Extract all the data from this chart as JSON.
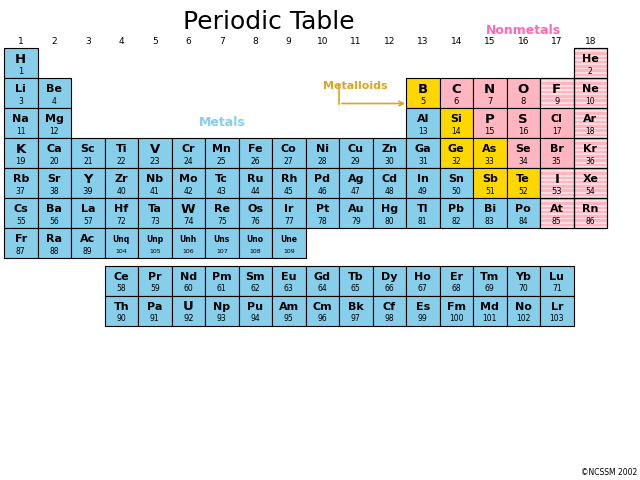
{
  "title": "Periodic Table",
  "title_fontsize": 18,
  "bg_color": "#ffffff",
  "color_map": {
    "metal": "#87CEEB",
    "nonmetal": "#FFB6C1",
    "metalloid": "#FFD700",
    "noble_striped": "#FFB6C1",
    "nonmetal_stripe": "#FFB6C1"
  },
  "elements": [
    {
      "symbol": "H",
      "number": 1,
      "group": 1,
      "period": 1,
      "type": "metal"
    },
    {
      "symbol": "He",
      "number": 2,
      "group": 18,
      "period": 1,
      "type": "noble_striped"
    },
    {
      "symbol": "Li",
      "number": 3,
      "group": 1,
      "period": 2,
      "type": "metal"
    },
    {
      "symbol": "Be",
      "number": 4,
      "group": 2,
      "period": 2,
      "type": "metal"
    },
    {
      "symbol": "B",
      "number": 5,
      "group": 13,
      "period": 2,
      "type": "metalloid"
    },
    {
      "symbol": "C",
      "number": 6,
      "group": 14,
      "period": 2,
      "type": "nonmetal"
    },
    {
      "symbol": "N",
      "number": 7,
      "group": 15,
      "period": 2,
      "type": "nonmetal"
    },
    {
      "symbol": "O",
      "number": 8,
      "group": 16,
      "period": 2,
      "type": "nonmetal"
    },
    {
      "symbol": "F",
      "number": 9,
      "group": 17,
      "period": 2,
      "type": "nonmetal_stripe"
    },
    {
      "symbol": "Ne",
      "number": 10,
      "group": 18,
      "period": 2,
      "type": "noble_striped"
    },
    {
      "symbol": "Na",
      "number": 11,
      "group": 1,
      "period": 3,
      "type": "metal"
    },
    {
      "symbol": "Mg",
      "number": 12,
      "group": 2,
      "period": 3,
      "type": "metal"
    },
    {
      "symbol": "Al",
      "number": 13,
      "group": 13,
      "period": 3,
      "type": "metal"
    },
    {
      "symbol": "Si",
      "number": 14,
      "group": 14,
      "period": 3,
      "type": "metalloid"
    },
    {
      "symbol": "P",
      "number": 15,
      "group": 15,
      "period": 3,
      "type": "nonmetal"
    },
    {
      "symbol": "S",
      "number": 16,
      "group": 16,
      "period": 3,
      "type": "nonmetal"
    },
    {
      "symbol": "Cl",
      "number": 17,
      "group": 17,
      "period": 3,
      "type": "nonmetal"
    },
    {
      "symbol": "Ar",
      "number": 18,
      "group": 18,
      "period": 3,
      "type": "noble_striped"
    },
    {
      "symbol": "K",
      "number": 19,
      "group": 1,
      "period": 4,
      "type": "metal"
    },
    {
      "symbol": "Ca",
      "number": 20,
      "group": 2,
      "period": 4,
      "type": "metal"
    },
    {
      "symbol": "Sc",
      "number": 21,
      "group": 3,
      "period": 4,
      "type": "metal"
    },
    {
      "symbol": "Ti",
      "number": 22,
      "group": 4,
      "period": 4,
      "type": "metal"
    },
    {
      "symbol": "V",
      "number": 23,
      "group": 5,
      "period": 4,
      "type": "metal"
    },
    {
      "symbol": "Cr",
      "number": 24,
      "group": 6,
      "period": 4,
      "type": "metal"
    },
    {
      "symbol": "Mn",
      "number": 25,
      "group": 7,
      "period": 4,
      "type": "metal"
    },
    {
      "symbol": "Fe",
      "number": 26,
      "group": 8,
      "period": 4,
      "type": "metal"
    },
    {
      "symbol": "Co",
      "number": 27,
      "group": 9,
      "period": 4,
      "type": "metal"
    },
    {
      "symbol": "Ni",
      "number": 28,
      "group": 10,
      "period": 4,
      "type": "metal"
    },
    {
      "symbol": "Cu",
      "number": 29,
      "group": 11,
      "period": 4,
      "type": "metal"
    },
    {
      "symbol": "Zn",
      "number": 30,
      "group": 12,
      "period": 4,
      "type": "metal"
    },
    {
      "symbol": "Ga",
      "number": 31,
      "group": 13,
      "period": 4,
      "type": "metal"
    },
    {
      "symbol": "Ge",
      "number": 32,
      "group": 14,
      "period": 4,
      "type": "metalloid"
    },
    {
      "symbol": "As",
      "number": 33,
      "group": 15,
      "period": 4,
      "type": "metalloid"
    },
    {
      "symbol": "Se",
      "number": 34,
      "group": 16,
      "period": 4,
      "type": "nonmetal"
    },
    {
      "symbol": "Br",
      "number": 35,
      "group": 17,
      "period": 4,
      "type": "nonmetal"
    },
    {
      "symbol": "Kr",
      "number": 36,
      "group": 18,
      "period": 4,
      "type": "noble_striped"
    },
    {
      "symbol": "Rb",
      "number": 37,
      "group": 1,
      "period": 5,
      "type": "metal"
    },
    {
      "symbol": "Sr",
      "number": 38,
      "group": 2,
      "period": 5,
      "type": "metal"
    },
    {
      "symbol": "Y",
      "number": 39,
      "group": 3,
      "period": 5,
      "type": "metal"
    },
    {
      "symbol": "Zr",
      "number": 40,
      "group": 4,
      "period": 5,
      "type": "metal"
    },
    {
      "symbol": "Nb",
      "number": 41,
      "group": 5,
      "period": 5,
      "type": "metal"
    },
    {
      "symbol": "Mo",
      "number": 42,
      "group": 6,
      "period": 5,
      "type": "metal"
    },
    {
      "symbol": "Tc",
      "number": 43,
      "group": 7,
      "period": 5,
      "type": "metal"
    },
    {
      "symbol": "Ru",
      "number": 44,
      "group": 8,
      "period": 5,
      "type": "metal"
    },
    {
      "symbol": "Rh",
      "number": 45,
      "group": 9,
      "period": 5,
      "type": "metal"
    },
    {
      "symbol": "Pd",
      "number": 46,
      "group": 10,
      "period": 5,
      "type": "metal"
    },
    {
      "symbol": "Ag",
      "number": 47,
      "group": 11,
      "period": 5,
      "type": "metal"
    },
    {
      "symbol": "Cd",
      "number": 48,
      "group": 12,
      "period": 5,
      "type": "metal"
    },
    {
      "symbol": "In",
      "number": 49,
      "group": 13,
      "period": 5,
      "type": "metal"
    },
    {
      "symbol": "Sn",
      "number": 50,
      "group": 14,
      "period": 5,
      "type": "metal"
    },
    {
      "symbol": "Sb",
      "number": 51,
      "group": 15,
      "period": 5,
      "type": "metalloid"
    },
    {
      "symbol": "Te",
      "number": 52,
      "group": 16,
      "period": 5,
      "type": "metalloid"
    },
    {
      "symbol": "I",
      "number": 53,
      "group": 17,
      "period": 5,
      "type": "nonmetal_stripe"
    },
    {
      "symbol": "Xe",
      "number": 54,
      "group": 18,
      "period": 5,
      "type": "noble_striped"
    },
    {
      "symbol": "Cs",
      "number": 55,
      "group": 1,
      "period": 6,
      "type": "metal"
    },
    {
      "symbol": "Ba",
      "number": 56,
      "group": 2,
      "period": 6,
      "type": "metal"
    },
    {
      "symbol": "La",
      "number": 57,
      "group": 3,
      "period": 6,
      "type": "metal"
    },
    {
      "symbol": "Hf",
      "number": 72,
      "group": 4,
      "period": 6,
      "type": "metal"
    },
    {
      "symbol": "Ta",
      "number": 73,
      "group": 5,
      "period": 6,
      "type": "metal"
    },
    {
      "symbol": "W",
      "number": 74,
      "group": 6,
      "period": 6,
      "type": "metal"
    },
    {
      "symbol": "Re",
      "number": 75,
      "group": 7,
      "period": 6,
      "type": "metal"
    },
    {
      "symbol": "Os",
      "number": 76,
      "group": 8,
      "period": 6,
      "type": "metal"
    },
    {
      "symbol": "Ir",
      "number": 77,
      "group": 9,
      "period": 6,
      "type": "metal"
    },
    {
      "symbol": "Pt",
      "number": 78,
      "group": 10,
      "period": 6,
      "type": "metal"
    },
    {
      "symbol": "Au",
      "number": 79,
      "group": 11,
      "period": 6,
      "type": "metal"
    },
    {
      "symbol": "Hg",
      "number": 80,
      "group": 12,
      "period": 6,
      "type": "metal"
    },
    {
      "symbol": "Tl",
      "number": 81,
      "group": 13,
      "period": 6,
      "type": "metal"
    },
    {
      "symbol": "Pb",
      "number": 82,
      "group": 14,
      "period": 6,
      "type": "metal"
    },
    {
      "symbol": "Bi",
      "number": 83,
      "group": 15,
      "period": 6,
      "type": "metal"
    },
    {
      "symbol": "Po",
      "number": 84,
      "group": 16,
      "period": 6,
      "type": "metal"
    },
    {
      "symbol": "At",
      "number": 85,
      "group": 17,
      "period": 6,
      "type": "nonmetal_stripe"
    },
    {
      "symbol": "Rn",
      "number": 86,
      "group": 18,
      "period": 6,
      "type": "noble_striped"
    },
    {
      "symbol": "Fr",
      "number": 87,
      "group": 1,
      "period": 7,
      "type": "metal"
    },
    {
      "symbol": "Ra",
      "number": 88,
      "group": 2,
      "period": 7,
      "type": "metal"
    },
    {
      "symbol": "Ac",
      "number": 89,
      "group": 3,
      "period": 7,
      "type": "metal"
    },
    {
      "symbol": "Unq",
      "number": 104,
      "group": 4,
      "period": 7,
      "type": "metal"
    },
    {
      "symbol": "Unp",
      "number": 105,
      "group": 5,
      "period": 7,
      "type": "metal"
    },
    {
      "symbol": "Unh",
      "number": 106,
      "group": 6,
      "period": 7,
      "type": "metal"
    },
    {
      "symbol": "Uns",
      "number": 107,
      "group": 7,
      "period": 7,
      "type": "metal"
    },
    {
      "symbol": "Uno",
      "number": 108,
      "group": 8,
      "period": 7,
      "type": "metal"
    },
    {
      "symbol": "Une",
      "number": 109,
      "group": 9,
      "period": 7,
      "type": "metal"
    },
    {
      "symbol": "Ce",
      "number": 58,
      "group": 4,
      "period": 8,
      "type": "metal"
    },
    {
      "symbol": "Pr",
      "number": 59,
      "group": 5,
      "period": 8,
      "type": "metal"
    },
    {
      "symbol": "Nd",
      "number": 60,
      "group": 6,
      "period": 8,
      "type": "metal"
    },
    {
      "symbol": "Pm",
      "number": 61,
      "group": 7,
      "period": 8,
      "type": "metal"
    },
    {
      "symbol": "Sm",
      "number": 62,
      "group": 8,
      "period": 8,
      "type": "metal"
    },
    {
      "symbol": "Eu",
      "number": 63,
      "group": 9,
      "period": 8,
      "type": "metal"
    },
    {
      "symbol": "Gd",
      "number": 64,
      "group": 10,
      "period": 8,
      "type": "metal"
    },
    {
      "symbol": "Tb",
      "number": 65,
      "group": 11,
      "period": 8,
      "type": "metal"
    },
    {
      "symbol": "Dy",
      "number": 66,
      "group": 12,
      "period": 8,
      "type": "metal"
    },
    {
      "symbol": "Ho",
      "number": 67,
      "group": 13,
      "period": 8,
      "type": "metal"
    },
    {
      "symbol": "Er",
      "number": 68,
      "group": 14,
      "period": 8,
      "type": "metal"
    },
    {
      "symbol": "Tm",
      "number": 69,
      "group": 15,
      "period": 8,
      "type": "metal"
    },
    {
      "symbol": "Yb",
      "number": 70,
      "group": 16,
      "period": 8,
      "type": "metal"
    },
    {
      "symbol": "Lu",
      "number": 71,
      "group": 17,
      "period": 8,
      "type": "metal"
    },
    {
      "symbol": "Th",
      "number": 90,
      "group": 4,
      "period": 9,
      "type": "metal"
    },
    {
      "symbol": "Pa",
      "number": 91,
      "group": 5,
      "period": 9,
      "type": "metal"
    },
    {
      "symbol": "U",
      "number": 92,
      "group": 6,
      "period": 9,
      "type": "metal"
    },
    {
      "symbol": "Np",
      "number": 93,
      "group": 7,
      "period": 9,
      "type": "metal"
    },
    {
      "symbol": "Pu",
      "number": 94,
      "group": 8,
      "period": 9,
      "type": "metal"
    },
    {
      "symbol": "Am",
      "number": 95,
      "group": 9,
      "period": 9,
      "type": "metal"
    },
    {
      "symbol": "Cm",
      "number": 96,
      "group": 10,
      "period": 9,
      "type": "metal"
    },
    {
      "symbol": "Bk",
      "number": 97,
      "group": 11,
      "period": 9,
      "type": "metal"
    },
    {
      "symbol": "Cf",
      "number": 98,
      "group": 12,
      "period": 9,
      "type": "metal"
    },
    {
      "symbol": "Es",
      "number": 99,
      "group": 13,
      "period": 9,
      "type": "metal"
    },
    {
      "symbol": "Fm",
      "number": 100,
      "group": 14,
      "period": 9,
      "type": "metal"
    },
    {
      "symbol": "Md",
      "number": 101,
      "group": 15,
      "period": 9,
      "type": "metal"
    },
    {
      "symbol": "No",
      "number": 102,
      "group": 16,
      "period": 9,
      "type": "metal"
    },
    {
      "symbol": "Lr",
      "number": 103,
      "group": 17,
      "period": 9,
      "type": "metal"
    }
  ],
  "group_labels": [
    1,
    2,
    3,
    4,
    5,
    6,
    7,
    8,
    9,
    10,
    11,
    12,
    13,
    14,
    15,
    16,
    17,
    18
  ],
  "nonmetals_label": "Nonmetals",
  "nonmetals_color": "#FF69B4",
  "metals_label": "Metals",
  "metals_color": "#87CEEB",
  "metalloids_label": "Metalloids",
  "metalloids_color": "#DAA520",
  "copyright": "©NCSSM 2002"
}
